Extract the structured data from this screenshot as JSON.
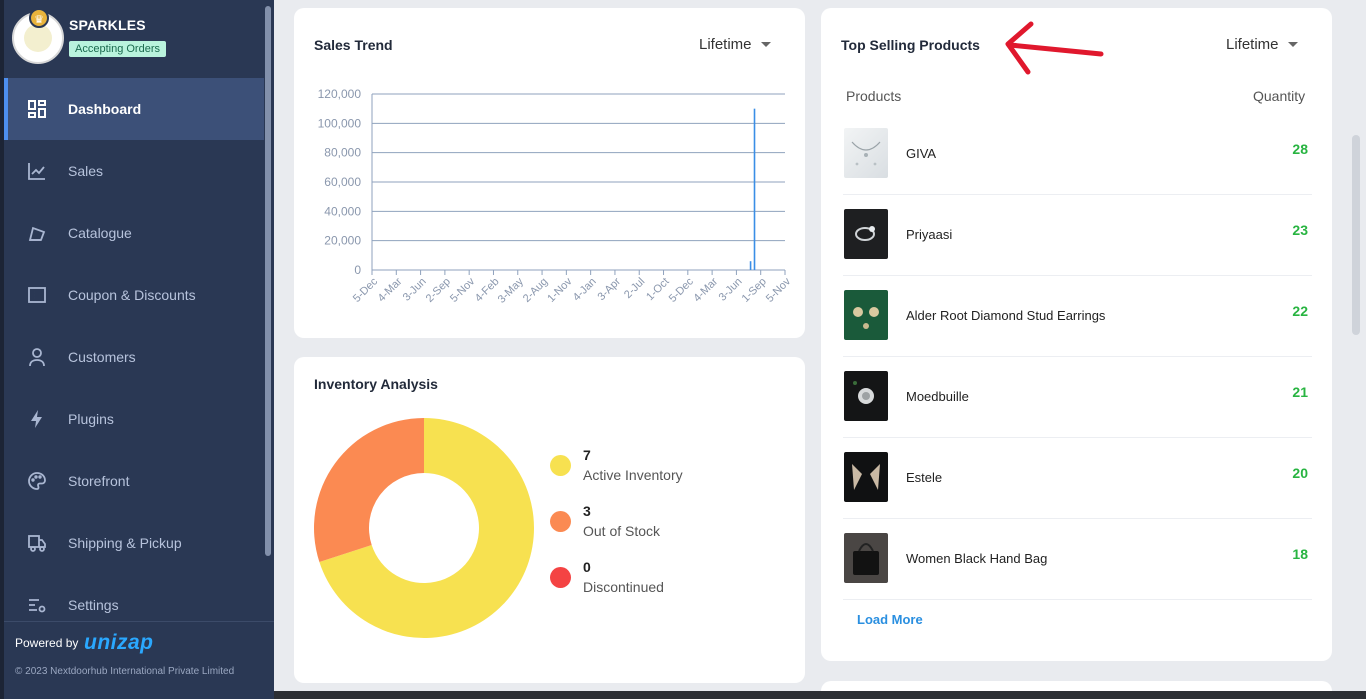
{
  "store": {
    "name": "SPARKLES",
    "status": "Accepting Orders"
  },
  "sidebar": {
    "items": [
      {
        "label": "Dashboard",
        "icon": "dashboard-icon",
        "active": true
      },
      {
        "label": "Sales",
        "icon": "chart-line-icon"
      },
      {
        "label": "Catalogue",
        "icon": "catalogue-icon"
      },
      {
        "label": "Coupon & Discounts",
        "icon": "coupon-icon"
      },
      {
        "label": "Customers",
        "icon": "user-icon"
      },
      {
        "label": "Plugins",
        "icon": "lightning-icon"
      },
      {
        "label": "Storefront",
        "icon": "palette-icon"
      },
      {
        "label": "Shipping & Pickup",
        "icon": "truck-icon"
      },
      {
        "label": "Settings",
        "icon": "settings-sliders-icon"
      }
    ],
    "footer": {
      "powered_by": "Powered by",
      "brand": "unizap",
      "copyright": "© 2023 Nextdoorhub International Private Limited"
    }
  },
  "sales_trend": {
    "title": "Sales Trend",
    "filter": "Lifetime",
    "chart_data": {
      "type": "bar",
      "categories": [
        "5-Dec",
        "4-Mar",
        "3-Jun",
        "2-Sep",
        "5-Nov",
        "4-Feb",
        "3-May",
        "2-Aug",
        "1-Nov",
        "4-Jan",
        "3-Apr",
        "2-Jul",
        "1-Oct",
        "5-Dec",
        "4-Mar",
        "3-Jun",
        "1-Sep",
        "5-Nov"
      ],
      "values": [
        0,
        0,
        0,
        0,
        0,
        0,
        0,
        0,
        0,
        0,
        0,
        0,
        0,
        0,
        0,
        0,
        110000,
        0
      ],
      "minor_points": [
        {
          "between": [
            "3-Jun",
            "1-Sep"
          ],
          "value": 6000
        }
      ],
      "yticks": [
        "0",
        "20,000",
        "40,000",
        "60,000",
        "80,000",
        "100,000",
        "120,000"
      ],
      "ylim": [
        0,
        120000
      ],
      "grid": true,
      "color": "#3a8ee6"
    }
  },
  "inventory": {
    "title": "Inventory Analysis",
    "chart_data": {
      "type": "pie",
      "labels": [
        "Active Inventory",
        "Out of Stock",
        "Discontinued"
      ],
      "values": [
        7,
        3,
        0
      ],
      "counts_text": [
        "7",
        "3",
        "0"
      ],
      "colors": [
        "#f7e150",
        "#fb8a52",
        "#f44343"
      ]
    }
  },
  "top_products": {
    "title": "Top Selling Products",
    "filter": "Lifetime",
    "col_products": "Products",
    "col_quantity": "Quantity",
    "items": [
      {
        "name": "GIVA",
        "qty": "28"
      },
      {
        "name": "Priyaasi",
        "qty": "23"
      },
      {
        "name": "Alder Root Diamond Stud Earrings",
        "qty": "22"
      },
      {
        "name": "Moedbuille",
        "qty": "21"
      },
      {
        "name": "Estele",
        "qty": "20"
      },
      {
        "name": "Women Black Hand Bag",
        "qty": "18"
      }
    ],
    "load_more": "Load More"
  }
}
